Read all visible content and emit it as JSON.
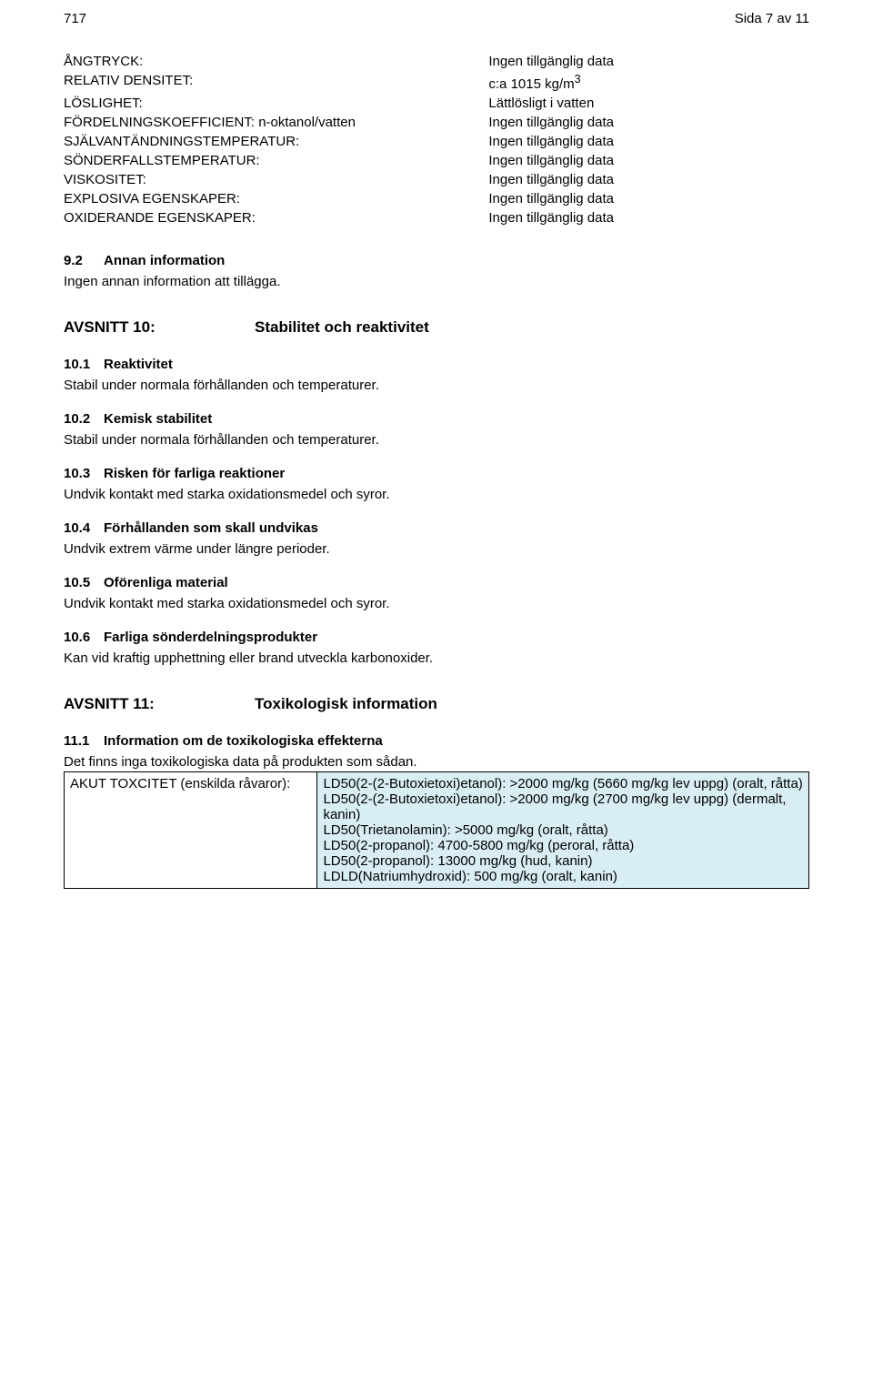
{
  "header": {
    "doc_num": "717",
    "page_info": "Sida 7 av 11"
  },
  "properties": [
    {
      "label": "ÅNGTRYCK:",
      "value": "Ingen tillgänglig data"
    },
    {
      "label": "RELATIV DENSITET:",
      "value": "c:a 1015 kg/m",
      "sup": "3"
    },
    {
      "label": "LÖSLIGHET:",
      "value": "Lättlösligt i vatten"
    },
    {
      "label": "FÖRDELNINGSKOEFFICIENT: n-oktanol/vatten",
      "value": "Ingen tillgänglig data"
    },
    {
      "label": "SJÄLVANTÄNDNINGSTEMPERATUR:",
      "value": "Ingen tillgänglig data"
    },
    {
      "label": "SÖNDERFALLSTEMPERATUR:",
      "value": "Ingen tillgänglig data"
    },
    {
      "label": "VISKOSITET:",
      "value": "Ingen tillgänglig data"
    },
    {
      "label": "EXPLOSIVA EGENSKAPER:",
      "value": "Ingen tillgänglig data"
    },
    {
      "label": "OXIDERANDE EGENSKAPER:",
      "value": "Ingen tillgänglig data"
    }
  ],
  "sec9_2": {
    "num": "9.2",
    "title": "Annan information",
    "body": "Ingen annan information att tillägga."
  },
  "section10": {
    "label": "AVSNITT 10:",
    "title": "Stabilitet och reaktivitet",
    "subs": [
      {
        "num": "10.1",
        "title": "Reaktivitet",
        "body": "Stabil under normala förhållanden och temperaturer."
      },
      {
        "num": "10.2",
        "title": "Kemisk stabilitet",
        "body": "Stabil under normala förhållanden och temperaturer."
      },
      {
        "num": "10.3",
        "title": "Risken för farliga reaktioner",
        "body": "Undvik kontakt med starka oxidationsmedel och syror."
      },
      {
        "num": "10.4",
        "title": "Förhållanden som skall undvikas",
        "body": "Undvik extrem värme under längre perioder."
      },
      {
        "num": "10.5",
        "title": "Oförenliga material",
        "body": "Undvik kontakt med starka oxidationsmedel och syror."
      },
      {
        "num": "10.6",
        "title": "Farliga sönderdelningsprodukter",
        "body": "Kan vid kraftig upphettning eller brand utveckla karbonoxider."
      }
    ]
  },
  "section11": {
    "label": "AVSNITT 11:",
    "title": "Toxikologisk information",
    "sub": {
      "num": "11.1",
      "title": "Information om de toxikologiska effekterna",
      "intro": "Det finns inga toxikologiska data på produkten som sådan."
    },
    "tox_label": "AKUT TOXCITET (enskilda råvaror):",
    "tox_lines": [
      "LD50(2-(2-Butoxietoxi)etanol): >2000 mg/kg (5660 mg/kg lev uppg) (oralt, råtta)",
      "LD50(2-(2-Butoxietoxi)etanol): >2000 mg/kg (2700 mg/kg lev uppg) (dermalt, kanin)",
      "LD50(Trietanolamin): >5000 mg/kg (oralt, råtta)",
      "LD50(2-propanol): 4700-5800 mg/kg (peroral, råtta)",
      "LD50(2-propanol): 13000 mg/kg (hud, kanin)",
      "LDLD(Natriumhydroxid): 500 mg/kg (oralt, kanin)"
    ]
  },
  "colors": {
    "tox_cell_bg": "#d9eef4",
    "text": "#000000",
    "bg": "#ffffff"
  }
}
